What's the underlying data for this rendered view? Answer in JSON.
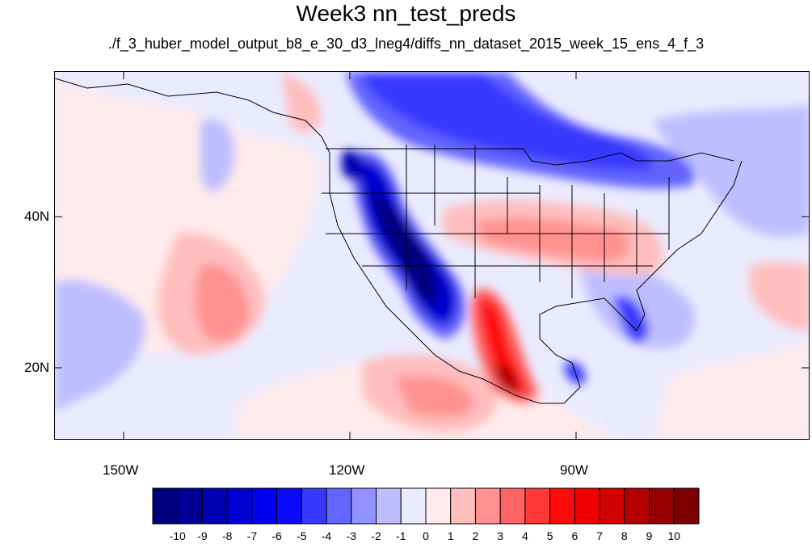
{
  "title": "Week3 nn_test_preds",
  "subtitle": "./f_3_huber_model_output_b8_e_30_d3_lneg4/diffs_nn_dataset_2015_week_15_ens_4_f_3",
  "map": {
    "lon_range": [
      -159,
      -60
    ],
    "lat_range": [
      11,
      60
    ],
    "lon_labels": [
      "150W",
      "120W",
      "90W"
    ],
    "lat_labels": [
      "40N",
      "20N"
    ]
  },
  "colorbar": {
    "labels": [
      "-10",
      "-9",
      "-8",
      "-7",
      "-6",
      "-5",
      "-4",
      "-3",
      "-2",
      "-1",
      "0",
      "1",
      "2",
      "3",
      "4",
      "5",
      "6",
      "7",
      "8",
      "9",
      "10"
    ],
    "colors": [
      "#00007f",
      "#000096",
      "#0000b4",
      "#0000d2",
      "#0000f0",
      "#0a0aff",
      "#3737ff",
      "#6464ff",
      "#9191ff",
      "#bebeff",
      "#ebebff",
      "#ffebeb",
      "#ffbebe",
      "#ff9191",
      "#ff6464",
      "#ff3737",
      "#ff0a0a",
      "#f00000",
      "#d20000",
      "#b40000",
      "#960000",
      "#7f0000"
    ]
  }
}
